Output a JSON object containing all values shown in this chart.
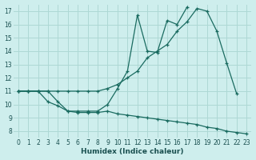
{
  "xlabel": "Humidex (Indice chaleur)",
  "bg_color": "#ceeeed",
  "grid_color": "#aed8d5",
  "line_color": "#1a6b60",
  "xlim": [
    -0.5,
    23.5
  ],
  "ylim": [
    7.5,
    17.5
  ],
  "xticks": [
    0,
    1,
    2,
    3,
    4,
    5,
    6,
    7,
    8,
    9,
    10,
    11,
    12,
    13,
    14,
    15,
    16,
    17,
    18,
    19,
    20,
    21,
    22,
    23
  ],
  "yticks": [
    8,
    9,
    10,
    11,
    12,
    13,
    14,
    15,
    16,
    17
  ],
  "series1_x": [
    0,
    1,
    2,
    3,
    4,
    5,
    6,
    7,
    8,
    9,
    10,
    11,
    12,
    13,
    14,
    15,
    16,
    17,
    18,
    19,
    20,
    21,
    22,
    23
  ],
  "series1_y": [
    11,
    11,
    11,
    11,
    11,
    11,
    11,
    11,
    11,
    11.2,
    11.5,
    12.0,
    12.5,
    13.5,
    14.0,
    14.5,
    15.5,
    16.2,
    17.2,
    17.0,
    15.5,
    13.1,
    10.8,
    null
  ],
  "series2_x": [
    0,
    1,
    2,
    3,
    4,
    5,
    6,
    7,
    8,
    9,
    10,
    11,
    12,
    13,
    14,
    15,
    16,
    17,
    18,
    19,
    20,
    21,
    22,
    23
  ],
  "series2_y": [
    11,
    11,
    11,
    10.2,
    9.9,
    9.5,
    9.5,
    9.5,
    9.5,
    10.0,
    11.2,
    12.5,
    16.7,
    14.0,
    13.9,
    16.3,
    16.0,
    17.3,
    null,
    null,
    null,
    null,
    null,
    null
  ],
  "series3_x": [
    0,
    1,
    2,
    3,
    4,
    5,
    6,
    7,
    8,
    9,
    10,
    11,
    12,
    13,
    14,
    15,
    16,
    17,
    18,
    19,
    20,
    21,
    22,
    23
  ],
  "series3_y": [
    11,
    11,
    11,
    11,
    10.2,
    9.5,
    9.4,
    9.4,
    9.4,
    9.5,
    9.3,
    9.2,
    9.1,
    9.0,
    8.9,
    8.8,
    8.7,
    8.6,
    8.5,
    8.3,
    8.2,
    8.0,
    7.9,
    7.8
  ]
}
